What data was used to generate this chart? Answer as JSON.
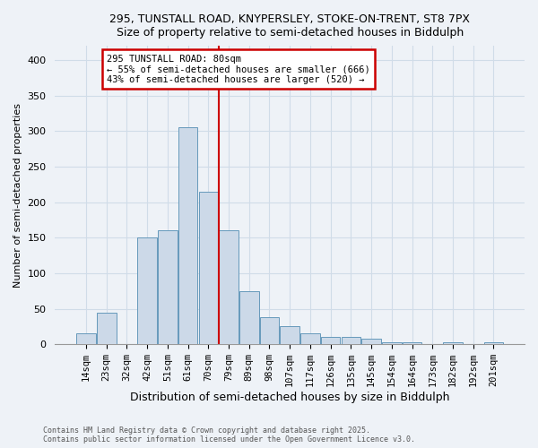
{
  "title": "295, TUNSTALL ROAD, KNYPERSLEY, STOKE-ON-TRENT, ST8 7PX",
  "subtitle": "Size of property relative to semi-detached houses in Biddulph",
  "xlabel": "Distribution of semi-detached houses by size in Biddulph",
  "ylabel": "Number of semi-detached properties",
  "bar_color": "#ccd9e8",
  "bar_edge_color": "#6699bb",
  "categories": [
    "14sqm",
    "23sqm",
    "32sqm",
    "42sqm",
    "51sqm",
    "61sqm",
    "70sqm",
    "79sqm",
    "89sqm",
    "98sqm",
    "107sqm",
    "117sqm",
    "126sqm",
    "135sqm",
    "145sqm",
    "154sqm",
    "164sqm",
    "173sqm",
    "182sqm",
    "192sqm",
    "201sqm"
  ],
  "values": [
    15,
    45,
    0,
    150,
    160,
    305,
    215,
    160,
    75,
    38,
    25,
    15,
    10,
    10,
    8,
    3,
    3,
    0,
    3,
    0,
    3
  ],
  "ylim": [
    0,
    420
  ],
  "yticks": [
    0,
    50,
    100,
    150,
    200,
    250,
    300,
    350,
    400
  ],
  "annotation_title": "295 TUNSTALL ROAD: 80sqm",
  "annotation_line1": "← 55% of semi-detached houses are smaller (666)",
  "annotation_line2": "43% of semi-detached houses are larger (520) →",
  "annotation_box_color": "#ffffff",
  "annotation_border_color": "#cc0000",
  "vline_color": "#cc0000",
  "vline_bar_index": 7,
  "footer1": "Contains HM Land Registry data © Crown copyright and database right 2025.",
  "footer2": "Contains public sector information licensed under the Open Government Licence v3.0.",
  "background_color": "#eef2f7",
  "grid_color": "#d0dce8",
  "plot_bg_color": "#eef2f7"
}
